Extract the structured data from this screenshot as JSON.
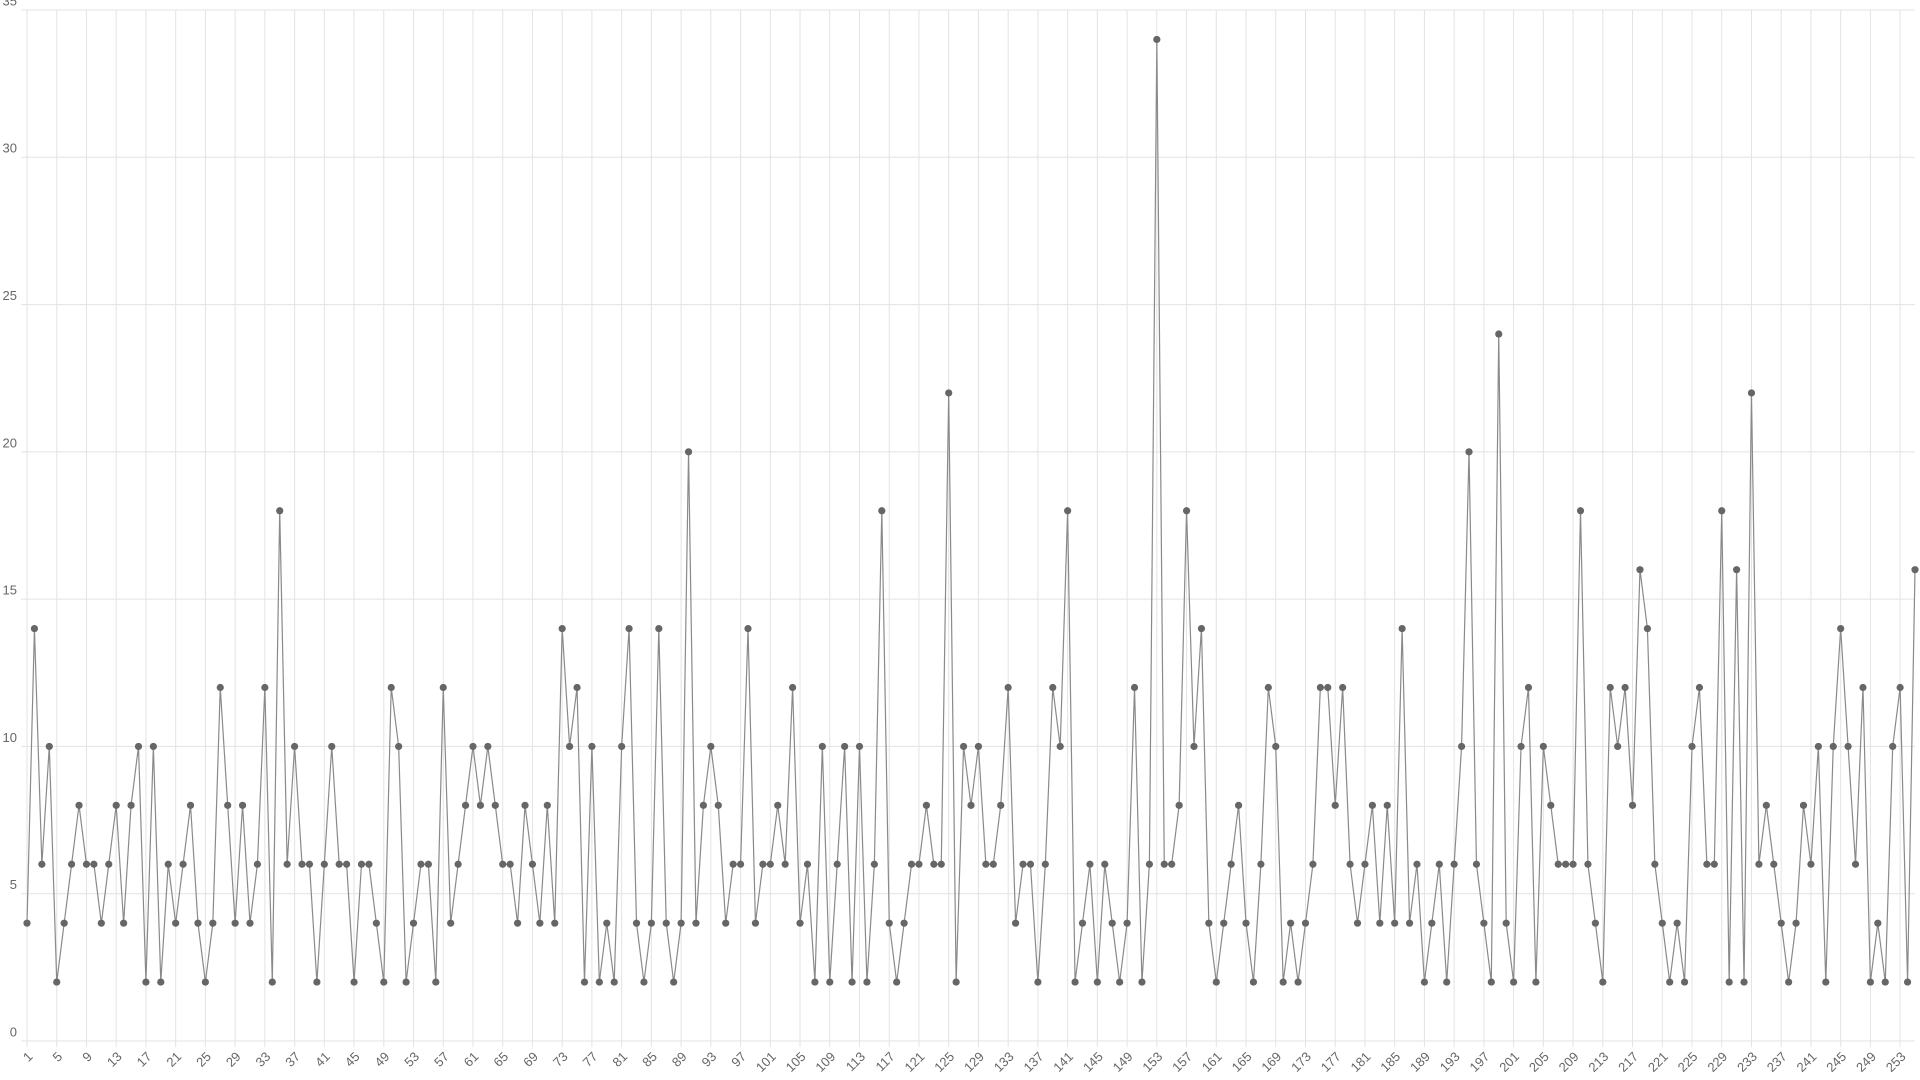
{
  "chart_data": {
    "type": "line",
    "x": [
      1,
      2,
      3,
      4,
      5,
      6,
      7,
      8,
      9,
      10,
      11,
      12,
      13,
      14,
      15,
      16,
      17,
      18,
      19,
      20,
      21,
      22,
      23,
      24,
      25,
      26,
      27,
      28,
      29,
      30,
      31,
      32,
      33,
      34,
      35,
      36,
      37,
      38,
      39,
      40,
      41,
      42,
      43,
      44,
      45,
      46,
      47,
      48,
      49,
      50,
      51,
      52,
      53,
      54,
      55,
      56,
      57,
      58,
      59,
      60,
      61,
      62,
      63,
      64,
      65,
      66,
      67,
      68,
      69,
      70,
      71,
      72,
      73,
      74,
      75,
      76,
      77,
      78,
      79,
      80,
      81,
      82,
      83,
      84,
      85,
      86,
      87,
      88,
      89,
      90,
      91,
      92,
      93,
      94,
      95,
      96,
      97,
      98,
      99,
      100,
      101,
      102,
      103,
      104,
      105,
      106,
      107,
      108,
      109,
      110,
      111,
      112,
      113,
      114,
      115,
      116,
      117,
      118,
      119,
      120,
      121,
      122,
      123,
      124,
      125,
      126,
      127,
      128,
      129,
      130,
      131,
      132,
      133,
      134,
      135,
      136,
      137,
      138,
      139,
      140,
      141,
      142,
      143,
      144,
      145,
      146,
      147,
      148,
      149,
      150,
      151,
      152,
      153,
      154,
      155,
      156,
      157,
      158,
      159,
      160,
      161,
      162,
      163,
      164,
      165,
      166,
      167,
      168,
      169,
      170,
      171,
      172,
      173,
      174,
      175,
      176,
      177,
      178,
      179,
      180,
      181,
      182,
      183,
      184,
      185,
      186,
      187,
      188,
      189,
      190,
      191,
      192,
      193,
      194,
      195,
      196,
      197,
      198,
      199,
      200,
      201,
      202,
      203,
      204,
      205,
      206,
      207,
      208,
      209,
      210,
      211,
      212,
      213,
      214,
      215,
      216,
      217,
      218,
      219,
      220,
      221,
      222,
      223,
      224,
      225,
      226,
      227,
      228,
      229,
      230,
      231,
      232,
      233,
      234,
      235,
      236,
      237,
      238,
      239,
      240,
      241,
      242,
      243,
      244,
      245,
      246,
      247,
      248,
      249,
      250,
      251,
      252,
      253,
      254,
      255
    ],
    "series": [
      {
        "color": "#666666",
        "values": [
          4,
          14,
          6,
          10,
          2,
          4,
          6,
          8,
          6,
          6,
          4,
          6,
          8,
          4,
          8,
          10,
          2,
          10,
          2,
          6,
          4,
          6,
          8,
          4,
          2,
          4,
          12,
          8,
          4,
          8,
          4,
          6,
          12,
          2,
          18,
          6,
          10,
          6,
          6,
          2,
          6,
          10,
          6,
          6,
          2,
          6,
          6,
          4,
          2,
          12,
          10,
          2,
          4,
          6,
          6,
          2,
          12,
          4,
          6,
          8,
          10,
          8,
          10,
          8,
          6,
          6,
          4,
          8,
          6,
          4,
          8,
          4,
          14,
          10,
          12,
          2,
          10,
          2,
          4,
          2,
          10,
          14,
          4,
          2,
          4,
          14,
          4,
          2,
          4,
          20,
          4,
          8,
          10,
          8,
          4,
          6,
          6,
          14,
          4,
          6,
          6,
          8,
          6,
          12,
          4,
          6,
          2,
          10,
          2,
          6,
          10,
          2,
          10,
          2,
          6,
          18,
          4,
          2,
          4,
          6,
          6,
          8,
          6,
          6,
          22,
          2,
          10,
          8,
          10,
          6,
          6,
          8,
          12,
          4,
          6,
          6,
          2,
          6,
          12,
          10,
          18,
          2,
          4,
          6,
          2,
          6,
          4,
          2,
          4,
          12,
          2,
          6,
          34,
          6,
          6,
          8,
          18,
          10,
          14,
          4,
          2,
          4,
          6,
          8,
          4,
          2,
          6,
          12,
          10,
          2,
          4,
          2,
          4,
          6,
          12,
          12,
          8,
          12,
          6,
          4,
          6,
          8,
          4,
          8,
          4,
          14,
          4,
          6,
          2,
          4,
          6,
          2,
          6,
          10,
          20,
          6,
          4,
          2,
          24,
          4,
          2,
          10,
          12,
          2,
          10,
          8,
          6,
          6,
          6,
          18,
          6,
          4,
          2,
          12,
          10,
          12,
          8,
          16,
          14,
          6,
          4,
          2,
          4,
          2,
          10,
          12,
          6,
          6,
          18,
          2,
          16,
          2,
          22,
          6,
          8,
          6,
          4,
          2,
          4,
          8,
          6,
          10,
          2,
          10,
          14,
          10,
          6,
          12,
          2,
          4,
          2,
          10,
          12,
          2,
          16
        ]
      }
    ],
    "xlim": [
      1,
      255
    ],
    "xticks": [
      1,
      5,
      9,
      13,
      17,
      21,
      25,
      29,
      33,
      37,
      41,
      45,
      49,
      53,
      57,
      61,
      65,
      69,
      73,
      77,
      81,
      85,
      89,
      93,
      97,
      101,
      105,
      109,
      113,
      117,
      121,
      125,
      129,
      133,
      137,
      141,
      145,
      149,
      153,
      157,
      161,
      165,
      169,
      173,
      177,
      181,
      185,
      189,
      193,
      197,
      201,
      205,
      209,
      213,
      217,
      221,
      225,
      229,
      233,
      237,
      241,
      245,
      249,
      253
    ],
    "ylim": [
      0,
      35
    ],
    "yticks": [
      0,
      5,
      10,
      15,
      20,
      25,
      30,
      35
    ],
    "grid": true
  }
}
